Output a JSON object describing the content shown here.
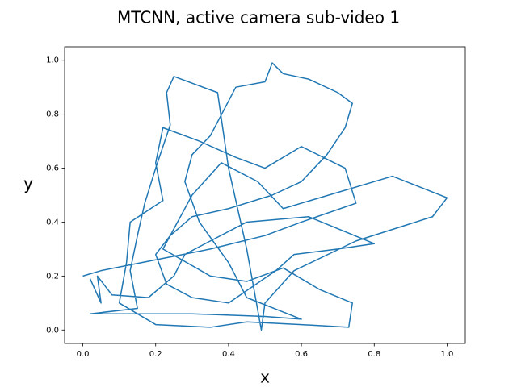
{
  "chart_data": {
    "type": "line",
    "title": "MTCNN, active camera sub-video 1",
    "xlabel": "x",
    "ylabel": "y",
    "x": [
      0.0,
      0.05,
      0.2,
      0.35,
      0.5,
      0.6,
      0.75,
      0.72,
      0.6,
      0.5,
      0.42,
      0.32,
      0.22,
      0.2,
      0.22,
      0.13,
      0.12,
      0.1,
      0.2,
      0.35,
      0.45,
      0.6,
      0.73,
      0.74,
      0.65,
      0.55,
      0.45,
      0.35,
      0.22,
      0.3,
      0.38,
      0.48,
      0.55,
      0.85,
      1.0,
      0.96,
      0.75,
      0.58,
      0.5,
      0.49,
      0.45,
      0.4,
      0.37,
      0.25,
      0.23,
      0.24,
      0.2,
      0.17,
      0.15,
      0.13,
      0.15,
      0.02,
      0.3,
      0.5,
      0.6,
      0.45,
      0.4,
      0.32,
      0.28,
      0.3,
      0.35,
      0.42,
      0.5,
      0.52,
      0.55,
      0.62,
      0.7,
      0.74,
      0.72,
      0.67,
      0.6,
      0.52,
      0.4,
      0.3,
      0.24,
      0.2,
      0.23,
      0.3,
      0.4,
      0.53,
      0.58,
      0.7,
      0.8,
      0.62,
      0.45,
      0.35,
      0.28,
      0.25,
      0.18,
      0.08,
      0.04,
      0.05,
      0.02
    ],
    "series": [
      {
        "color": "#1f77b4",
        "values": [
          0.2,
          0.22,
          0.26,
          0.3,
          0.35,
          0.4,
          0.47,
          0.6,
          0.68,
          0.6,
          0.64,
          0.7,
          0.75,
          0.62,
          0.48,
          0.4,
          0.25,
          0.1,
          0.02,
          0.01,
          0.03,
          0.02,
          0.01,
          0.1,
          0.15,
          0.23,
          0.18,
          0.2,
          0.3,
          0.5,
          0.62,
          0.55,
          0.45,
          0.57,
          0.49,
          0.42,
          0.33,
          0.22,
          0.1,
          0.0,
          0.3,
          0.6,
          0.88,
          0.94,
          0.88,
          0.76,
          0.6,
          0.47,
          0.35,
          0.22,
          0.08,
          0.06,
          0.06,
          0.05,
          0.04,
          0.12,
          0.25,
          0.4,
          0.55,
          0.65,
          0.72,
          0.9,
          0.92,
          0.99,
          0.95,
          0.93,
          0.88,
          0.84,
          0.75,
          0.65,
          0.55,
          0.5,
          0.45,
          0.42,
          0.35,
          0.28,
          0.17,
          0.12,
          0.1,
          0.22,
          0.28,
          0.3,
          0.32,
          0.42,
          0.4,
          0.33,
          0.28,
          0.2,
          0.12,
          0.13,
          0.2,
          0.1,
          0.19
        ]
      }
    ],
    "xlim": [
      -0.05,
      1.05
    ],
    "ylim": [
      -0.05,
      1.05
    ],
    "xticks": [
      {
        "value": 0,
        "label": "0.0"
      },
      0.2,
      0.4,
      0.6,
      0.8,
      {
        "value": 1,
        "label": "1.0"
      }
    ],
    "yticks": [
      {
        "value": 0,
        "label": "0.0"
      },
      0.2,
      0.4,
      0.6,
      0.8,
      {
        "value": 1,
        "label": "1.0"
      }
    ]
  }
}
